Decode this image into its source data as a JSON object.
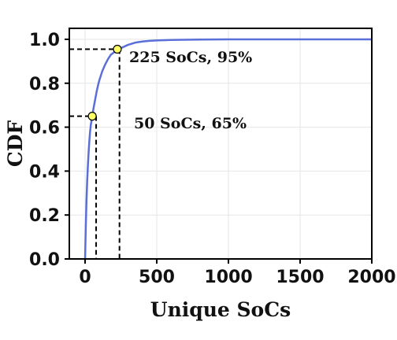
{
  "chart_data": {
    "type": "line",
    "title": "",
    "xlabel": "Unique SoCs",
    "ylabel": "CDF",
    "xlim": [
      -110,
      2000
    ],
    "ylim": [
      0,
      1.05
    ],
    "xticks": [
      0,
      500,
      1000,
      1500,
      2000
    ],
    "xtick_labels": [
      "0",
      "500",
      "1000",
      "1500",
      "2000"
    ],
    "yticks": [
      0.0,
      0.2,
      0.4,
      0.6,
      0.8,
      1.0
    ],
    "ytick_labels": [
      "0.0",
      "0.2",
      "0.4",
      "0.6",
      "0.8",
      "1.0"
    ],
    "grid": true,
    "legend": "none",
    "series": [
      {
        "color": "#5a6fd8",
        "x": [
          0,
          5,
          10,
          15,
          20,
          25,
          30,
          35,
          40,
          50,
          60,
          70,
          80,
          90,
          100,
          120,
          140,
          160,
          180,
          200,
          225,
          250,
          300,
          350,
          400,
          450,
          500,
          600,
          700,
          800,
          1000,
          1200,
          1500,
          2000
        ],
        "y": [
          0.0,
          0.15,
          0.27,
          0.36,
          0.43,
          0.49,
          0.54,
          0.58,
          0.61,
          0.65,
          0.69,
          0.725,
          0.76,
          0.79,
          0.815,
          0.855,
          0.885,
          0.91,
          0.93,
          0.94,
          0.95,
          0.96,
          0.975,
          0.985,
          0.99,
          0.993,
          0.995,
          0.997,
          0.998,
          0.999,
          1.0,
          1.0,
          1.0,
          1.0
        ]
      }
    ],
    "reference_lines": {
      "color": "#000000",
      "lines": [
        {
          "x": 77,
          "y": 0.65
        },
        {
          "x": 240,
          "y": 0.955
        }
      ]
    },
    "markers": [
      {
        "x": 50,
        "y": 0.65,
        "label": "50 SoCs, 65%"
      },
      {
        "x": 225,
        "y": 0.955,
        "label": "225 SoCs, 95%"
      }
    ],
    "marker_color": "#ffff66"
  }
}
